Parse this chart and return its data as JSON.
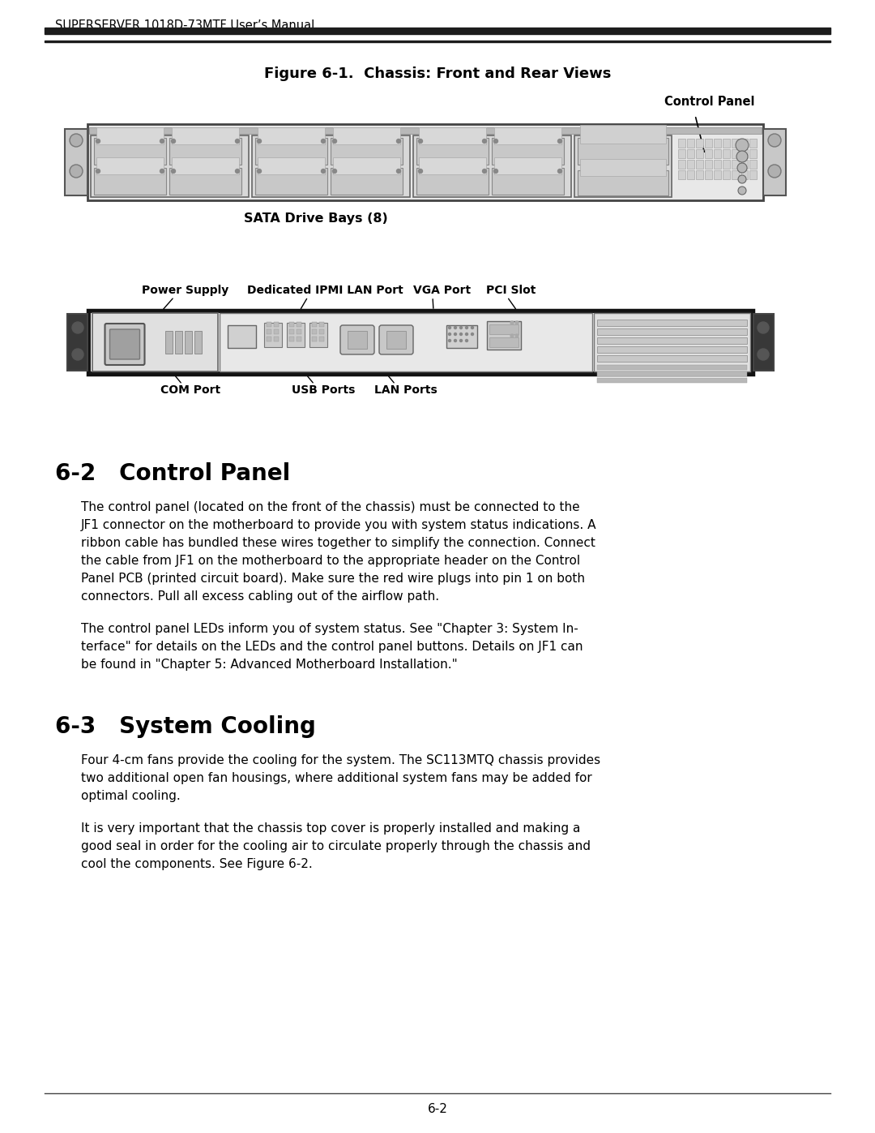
{
  "page_title": "SUPERSERVER 1018D-73MTF User’s Manual",
  "figure_title": "Figure 6-1.  Chassis: Front and Rear Views",
  "front_label": "Control Panel",
  "front_bottom_label": "SATA Drive Bays (8)",
  "rear_top_labels": [
    "Power Supply",
    "Dedicated IPMI LAN Port",
    "VGA Port",
    "PCI Slot"
  ],
  "rear_bottom_labels": [
    "COM Port",
    "USB Ports",
    "LAN Ports"
  ],
  "section1_title": "6-2   Control Panel",
  "section1_para1": "The control panel (located on the front of the chassis) must be connected to the JF1 connector on the motherboard to provide you with system status indications. A ribbon cable has bundled these wires together to simplify the connection. Connect the cable from JF1 on the motherboard to the appropriate header on the Control Panel PCB (printed circuit board). Make sure the red wire plugs into pin 1 on both connectors. Pull all excess cabling out of the airflow path.",
  "section1_para2": "The control panel LEDs inform you of system status. See \"Chapter 3: System In-terface\" for details on the LEDs and the control panel buttons. Details on JF1 can be found in \"Chapter 5: Advanced Motherboard Installation.\"",
  "section2_title": "6-3   System Cooling",
  "section2_para1": "Four 4-cm fans provide the cooling for the system. The SC113MTQ chassis provides two additional open fan housings, where additional system fans may be added for optimal cooling.",
  "section2_para2": "It is very important that the chassis top cover is properly installed and making a good seal in order for the cooling air to circulate properly through the chassis and cool the components. See Figure 6-2.",
  "footer": "6-2",
  "bg_color": "#ffffff",
  "text_color": "#000000"
}
